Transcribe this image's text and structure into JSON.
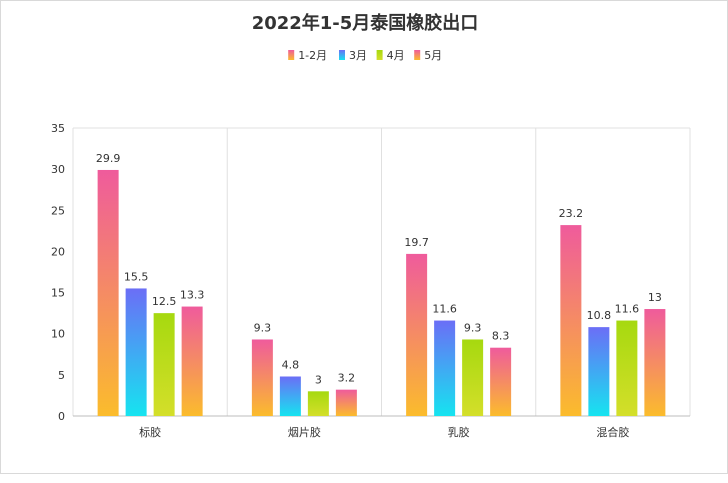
{
  "chart_data": {
    "type": "bar",
    "title": "2022年1-5月泰国橡胶出口",
    "categories": [
      "标胶",
      "烟片胶",
      "乳胶",
      "混合胶"
    ],
    "series": [
      {
        "name": "1-2月",
        "values": [
          29.9,
          9.3,
          19.7,
          23.2
        ],
        "color_top": "#ef5b9c",
        "color_bottom": "#fbbc2c"
      },
      {
        "name": "3月",
        "values": [
          15.5,
          4.8,
          11.6,
          10.8
        ],
        "color_top": "#6b6ef6",
        "color_bottom": "#16e4f0"
      },
      {
        "name": "4月",
        "values": [
          12.5,
          3,
          9.3,
          11.6
        ],
        "color_top": "#a6d90f",
        "color_bottom": "#d4df2a"
      },
      {
        "name": "5月",
        "values": [
          13.3,
          3.2,
          8.3,
          13
        ],
        "color_top": "#ef5b9c",
        "color_bottom": "#fbbc2c"
      }
    ],
    "ylim": [
      0,
      35
    ],
    "yticks": [
      0,
      5,
      10,
      15,
      20,
      25,
      30,
      35
    ],
    "legend_position": "top-center",
    "grid": "vertical category separators"
  }
}
